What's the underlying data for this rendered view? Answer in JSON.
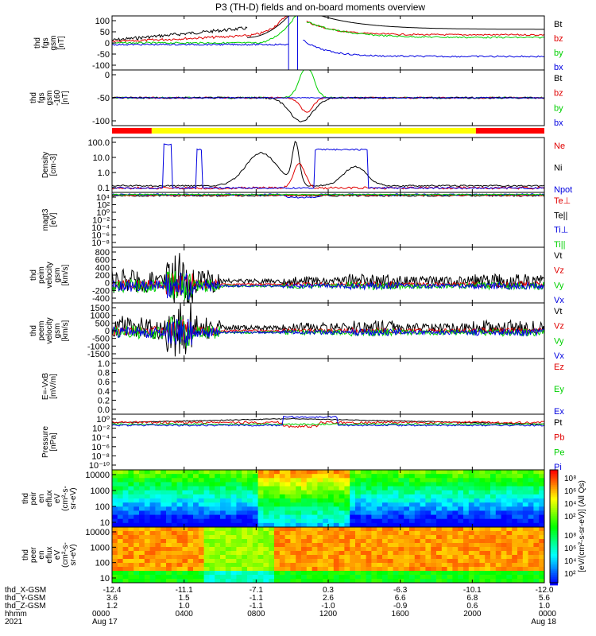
{
  "title": "P3 (TH-D) fields and on-board moments overview",
  "colors": {
    "black": "#000000",
    "red": "#e00000",
    "green": "#00d000",
    "blue": "#0000e0",
    "yellow": "#ffff00",
    "bar_red": "#ff0000"
  },
  "chart_data": [
    {
      "type": "line",
      "ylabel_lines": [
        "thd",
        "fgs",
        "gsm",
        "[nT]"
      ],
      "ylim": [
        -100,
        100
      ],
      "yticks": [
        "100",
        "50",
        "0",
        "-50",
        "-100"
      ],
      "legend": [
        {
          "label": "Bt",
          "color": "black"
        },
        {
          "label": "bz",
          "color": "red"
        },
        {
          "label": "by",
          "color": "green"
        },
        {
          "label": "bx",
          "color": "blue"
        }
      ]
    },
    {
      "type": "line",
      "ylabel_lines": [
        "thd",
        "fgs",
        "gsm",
        "-160",
        "[nT]"
      ],
      "ylim": [
        -120,
        40
      ],
      "yticks": [
        "0",
        "-50",
        "-100"
      ],
      "legend": [
        {
          "label": "Bt",
          "color": "black"
        },
        {
          "label": "bz",
          "color": "red"
        },
        {
          "label": "by",
          "color": "green"
        },
        {
          "label": "bx",
          "color": "blue"
        }
      ]
    },
    {
      "type": "line",
      "ylabel_lines": [
        "Density",
        "[cm-3]"
      ],
      "scale": "log",
      "ylim": [
        0.1,
        300
      ],
      "yticks": [
        "100.0",
        "10.0",
        "1.0",
        "0.1"
      ],
      "legend": [
        {
          "label": "Ne",
          "color": "red"
        },
        {
          "label": "Ni",
          "color": "black"
        },
        {
          "label": "Npot",
          "color": "blue"
        }
      ]
    },
    {
      "type": "line",
      "ylabel_lines": [
        "magt3",
        "[eV]"
      ],
      "scale": "log",
      "yticks": [
        "10⁴",
        "10²",
        "10⁰",
        "10⁻²",
        "10⁻⁴",
        "10⁻⁶",
        "10⁻⁸"
      ],
      "legend": [
        {
          "label": "Te⊥",
          "color": "red"
        },
        {
          "label": "Te||",
          "color": "black"
        },
        {
          "label": "Ti⊥",
          "color": "blue"
        },
        {
          "label": "Ti||",
          "color": "green"
        }
      ]
    },
    {
      "type": "line",
      "ylabel_lines": [
        "thd",
        "peim",
        "velocity",
        "gsm",
        "[km/s]"
      ],
      "ylim": [
        -400,
        800
      ],
      "yticks": [
        "800",
        "600",
        "400",
        "200",
        "0",
        "-200",
        "-400"
      ],
      "legend": [
        {
          "label": "Vt",
          "color": "black"
        },
        {
          "label": "Vz",
          "color": "red"
        },
        {
          "label": "Vy",
          "color": "green"
        },
        {
          "label": "Vx",
          "color": "blue"
        }
      ]
    },
    {
      "type": "line",
      "ylabel_lines": [
        "thd",
        "peem",
        "velocity",
        "gsm",
        "[km/s]"
      ],
      "ylim": [
        -1500,
        1500
      ],
      "yticks": [
        "1500",
        "1000",
        "500",
        "0",
        "-500",
        "-1000",
        "-1500"
      ],
      "legend": [
        {
          "label": "Vt",
          "color": "black"
        },
        {
          "label": "Vz",
          "color": "red"
        },
        {
          "label": "Vy",
          "color": "green"
        },
        {
          "label": "Vx",
          "color": "blue"
        }
      ]
    },
    {
      "type": "line",
      "ylabel_lines": [
        "E=-VxB",
        "[mV/m]"
      ],
      "ylim": [
        0,
        1
      ],
      "yticks": [
        "1.0",
        "0.8",
        "0.6",
        "0.4",
        "0.2",
        "0.0"
      ],
      "legend": [
        {
          "label": "Ez",
          "color": "red"
        },
        {
          "label": "Ey",
          "color": "green"
        },
        {
          "label": "Ex",
          "color": "blue"
        }
      ]
    },
    {
      "type": "line",
      "ylabel_lines": [
        "Pressure",
        "[nPa]"
      ],
      "scale": "log",
      "yticks": [
        "10⁰",
        "10⁻²",
        "10⁻⁴",
        "10⁻⁶",
        "10⁻⁸",
        "10⁻¹⁰"
      ],
      "legend": [
        {
          "label": "Pt",
          "color": "black"
        },
        {
          "label": "Pb",
          "color": "red"
        },
        {
          "label": "Pe",
          "color": "green"
        },
        {
          "label": "Pi",
          "color": "blue"
        }
      ]
    },
    {
      "type": "heatmap",
      "ylabel_lines": [
        "thd",
        "peir",
        "en",
        "eflux",
        "eV",
        "(cm²-s-",
        "sr-eV)"
      ],
      "scale": "log",
      "yticks": [
        "10000",
        "1000",
        "100",
        "10"
      ]
    },
    {
      "type": "heatmap",
      "ylabel_lines": [
        "thd",
        "peer",
        "en",
        "eflux",
        "eV",
        "(cm²-s-",
        "sr-eV)"
      ],
      "scale": "log",
      "yticks": [
        "10000",
        "1000",
        "100",
        "10"
      ]
    }
  ],
  "colorbar": {
    "label": "[eV/(cm²-s-sr-eV)] (All Qs)",
    "upper_ticks": [
      "10⁸",
      "10⁶",
      "10⁴",
      "10²"
    ],
    "lower_ticks": [
      "10⁸",
      "10⁶",
      "10⁴",
      "10²"
    ]
  },
  "xaxis": {
    "row_labels": [
      "thd_X-GSM",
      "thd_Y-GSM",
      "thd_Z-GSM",
      "hhmm",
      "2021"
    ],
    "columns": [
      [
        "-12.4",
        "3.6",
        "1.2",
        "0000",
        "Aug 17"
      ],
      [
        "-11.1",
        "1.5",
        "1.0",
        "0400",
        ""
      ],
      [
        "-7.1",
        "-1.1",
        "-1.1",
        "0800",
        ""
      ],
      [
        "0.3",
        "2.6",
        "-1.0",
        "1200",
        ""
      ],
      [
        "-6.3",
        "6.6",
        "-0.9",
        "1600",
        ""
      ],
      [
        "-10.1",
        "6.8",
        "0.6",
        "2000",
        ""
      ],
      [
        "-12.0",
        "5.6",
        "1.0",
        "0000",
        "Aug 18"
      ]
    ]
  }
}
